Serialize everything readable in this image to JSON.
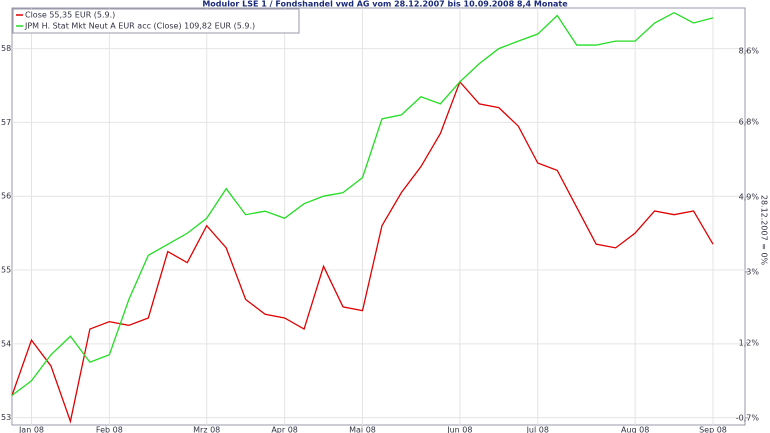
{
  "chart_data": {
    "type": "line",
    "title": "Modulor LSE 1 / Fondshandel vwd AG vom 28.12.2007 bis 10.09.2008 8,4 Monate",
    "y2_label": "28.12.2007 = 0%",
    "categories": [
      null,
      "Jan 08",
      null,
      null,
      null,
      "Feb 08",
      null,
      null,
      null,
      null,
      "Mrz 08",
      null,
      null,
      null,
      "Apr 08",
      null,
      null,
      null,
      "Mai 08",
      null,
      null,
      null,
      null,
      "Jun 08",
      null,
      null,
      null,
      "Jul 08",
      null,
      null,
      null,
      null,
      "Aug 08",
      null,
      null,
      null,
      "Sep 08"
    ],
    "series": [
      {
        "name": "Close 55,35 EUR (5.9.)",
        "color": "#e00000",
        "values": [
          53.3,
          54.05,
          53.7,
          52.95,
          54.2,
          54.3,
          54.25,
          54.35,
          55.25,
          55.1,
          55.6,
          55.3,
          54.6,
          54.4,
          54.35,
          54.2,
          55.05,
          54.5,
          54.45,
          55.6,
          56.05,
          56.4,
          56.85,
          57.55,
          57.25,
          57.2,
          56.95,
          56.45,
          56.35,
          55.85,
          55.35,
          55.3,
          55.5,
          55.8,
          55.75,
          55.8,
          55.35
        ]
      },
      {
        "name": "JPM H. Stat Mkt Neut A EUR acc (Close) 109,82 EUR (5.9.)",
        "color": "#22dd22",
        "axis": "y2",
        "values": [
          -0.13,
          0.24,
          0.9,
          1.37,
          0.71,
          0.9,
          2.3,
          3.42,
          3.7,
          3.98,
          4.36,
          5.11,
          4.45,
          4.54,
          4.36,
          4.73,
          4.92,
          5.01,
          5.39,
          6.88,
          6.98,
          7.44,
          7.26,
          7.82,
          8.28,
          8.66,
          8.85,
          9.03,
          9.5,
          8.75,
          8.75,
          8.85,
          8.85,
          9.31,
          9.57,
          9.31,
          9.44
        ]
      }
    ],
    "ylim": [
      52.9,
      58.55
    ],
    "yticks": [
      53,
      54,
      55,
      56,
      57,
      58
    ],
    "y2lim": [
      -0.88,
      9.69
    ],
    "y2ticks": [
      {
        "value": -0.7,
        "label": "-0,7%"
      },
      {
        "value": 1.2,
        "label": "1,2%"
      },
      {
        "value": 3.0,
        "label": "3%"
      },
      {
        "value": 4.9,
        "label": "4,9%"
      },
      {
        "value": 6.8,
        "label": "6,8%"
      },
      {
        "value": 8.6,
        "label": "8,6%"
      }
    ],
    "grid": true,
    "legend": "top-left"
  }
}
